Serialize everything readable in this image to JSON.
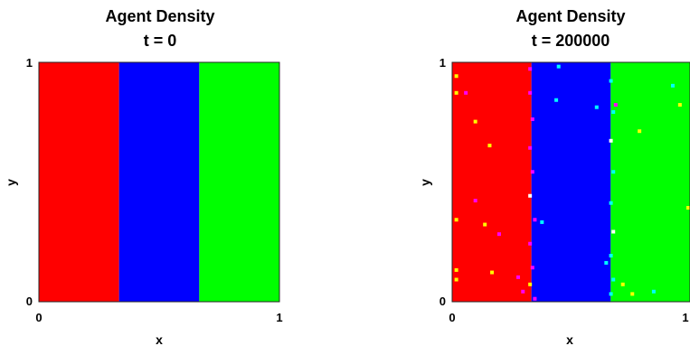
{
  "chart_data": [
    {
      "type": "heatmap",
      "title": "Agent Density",
      "subtitle": "t = 0",
      "xlabel": "x",
      "ylabel": "y",
      "xlim": [
        0,
        1
      ],
      "ylim": [
        0,
        1
      ],
      "xticks": [
        "0",
        "1"
      ],
      "yticks": [
        "0",
        "1"
      ],
      "grid": false,
      "bands": [
        {
          "x_start": 0.0,
          "x_end": 0.3333,
          "color": "#ff0000"
        },
        {
          "x_start": 0.3333,
          "x_end": 0.6667,
          "color": "#0000ff"
        },
        {
          "x_start": 0.6667,
          "x_end": 1.0,
          "color": "#00ff00"
        }
      ],
      "speckles": []
    },
    {
      "type": "heatmap",
      "title": "Agent Density",
      "subtitle": "t = 200000",
      "xlabel": "x",
      "ylabel": "y",
      "xlim": [
        0,
        1
      ],
      "ylim": [
        0,
        1
      ],
      "xticks": [
        "0",
        "1"
      ],
      "yticks": [
        "0",
        "1"
      ],
      "grid": false,
      "bands": [
        {
          "x_start": 0.0,
          "x_end": 0.3333,
          "color": "#ff0000"
        },
        {
          "x_start": 0.3333,
          "x_end": 0.6667,
          "color": "#0000ff"
        },
        {
          "x_start": 0.6667,
          "x_end": 1.0,
          "color": "#00ff00"
        }
      ],
      "speckles": [
        {
          "x": 0.01,
          "y": 0.95,
          "color": "#ffff00"
        },
        {
          "x": 0.01,
          "y": 0.88,
          "color": "#ffff00"
        },
        {
          "x": 0.05,
          "y": 0.88,
          "color": "#ff00ff"
        },
        {
          "x": 0.09,
          "y": 0.76,
          "color": "#ffff00"
        },
        {
          "x": 0.15,
          "y": 0.66,
          "color": "#ffff00"
        },
        {
          "x": 0.09,
          "y": 0.43,
          "color": "#ff00ff"
        },
        {
          "x": 0.13,
          "y": 0.33,
          "color": "#ffff00"
        },
        {
          "x": 0.01,
          "y": 0.35,
          "color": "#ffff00"
        },
        {
          "x": 0.19,
          "y": 0.29,
          "color": "#ff00ff"
        },
        {
          "x": 0.01,
          "y": 0.14,
          "color": "#ffff00"
        },
        {
          "x": 0.01,
          "y": 0.1,
          "color": "#ffff00"
        },
        {
          "x": 0.16,
          "y": 0.13,
          "color": "#ffff00"
        },
        {
          "x": 0.27,
          "y": 0.11,
          "color": "#ff00ff"
        },
        {
          "x": 0.29,
          "y": 0.05,
          "color": "#ff00ff"
        },
        {
          "x": 0.32,
          "y": 0.98,
          "color": "#ff00ff"
        },
        {
          "x": 0.32,
          "y": 0.88,
          "color": "#ff00ff"
        },
        {
          "x": 0.33,
          "y": 0.77,
          "color": "#ff00ff"
        },
        {
          "x": 0.32,
          "y": 0.65,
          "color": "#ff00ff"
        },
        {
          "x": 0.33,
          "y": 0.55,
          "color": "#ff00ff"
        },
        {
          "x": 0.32,
          "y": 0.45,
          "color": "#ffffff"
        },
        {
          "x": 0.34,
          "y": 0.35,
          "color": "#ff00ff"
        },
        {
          "x": 0.32,
          "y": 0.25,
          "color": "#ff00ff"
        },
        {
          "x": 0.33,
          "y": 0.15,
          "color": "#ff00ff"
        },
        {
          "x": 0.32,
          "y": 0.08,
          "color": "#ffff00"
        },
        {
          "x": 0.34,
          "y": 0.02,
          "color": "#ff00ff"
        },
        {
          "x": 0.37,
          "y": 0.34,
          "color": "#00ffff"
        },
        {
          "x": 0.44,
          "y": 0.99,
          "color": "#00ffff"
        },
        {
          "x": 0.43,
          "y": 0.85,
          "color": "#00ffff"
        },
        {
          "x": 0.6,
          "y": 0.82,
          "color": "#00ffff"
        },
        {
          "x": 0.64,
          "y": 0.17,
          "color": "#00ffff"
        },
        {
          "x": 0.66,
          "y": 0.93,
          "color": "#00ffff"
        },
        {
          "x": 0.67,
          "y": 0.8,
          "color": "#00ffff"
        },
        {
          "x": 0.66,
          "y": 0.68,
          "color": "#ffffff"
        },
        {
          "x": 0.67,
          "y": 0.55,
          "color": "#00ffff"
        },
        {
          "x": 0.66,
          "y": 0.42,
          "color": "#00ffff"
        },
        {
          "x": 0.67,
          "y": 0.3,
          "color": "#ffffff"
        },
        {
          "x": 0.66,
          "y": 0.2,
          "color": "#00ffff"
        },
        {
          "x": 0.67,
          "y": 0.1,
          "color": "#00ffff"
        },
        {
          "x": 0.66,
          "y": 0.04,
          "color": "#00ffff"
        },
        {
          "x": 0.68,
          "y": 0.83,
          "color": "#ff00ff"
        },
        {
          "x": 0.71,
          "y": 0.08,
          "color": "#ffff00"
        },
        {
          "x": 0.78,
          "y": 0.72,
          "color": "#ffff00"
        },
        {
          "x": 0.92,
          "y": 0.91,
          "color": "#00ffff"
        },
        {
          "x": 0.95,
          "y": 0.83,
          "color": "#ffff00"
        },
        {
          "x": 0.99,
          "y": 0.4,
          "color": "#ffff00"
        },
        {
          "x": 0.84,
          "y": 0.05,
          "color": "#00ffff"
        },
        {
          "x": 0.75,
          "y": 0.04,
          "color": "#ffff00"
        }
      ]
    }
  ]
}
